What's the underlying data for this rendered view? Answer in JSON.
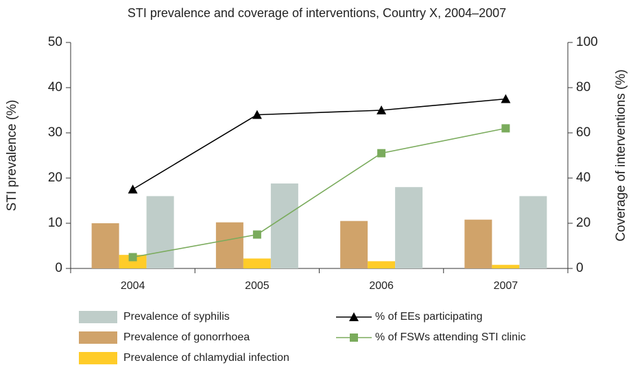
{
  "chart_data": {
    "type": "bar-line",
    "title": "STI prevalence and coverage of interventions, Country X, 2004–2007",
    "ylabel": "STI prevalence (%)",
    "y2label": "Coverage of interventions (%)",
    "categories": [
      "2004",
      "2005",
      "2006",
      "2007"
    ],
    "series": [
      {
        "name": "Prevalence of gonorrhoea",
        "type": "bar",
        "color": "#d0a36a",
        "values": [
          10,
          10.2,
          10.5,
          10.8
        ]
      },
      {
        "name": "Prevalence of chlamydial infection",
        "type": "bar",
        "color": "#ffcc29",
        "values": [
          3,
          2.2,
          1.6,
          0.8
        ]
      },
      {
        "name": "Prevalence of syphilis",
        "type": "bar",
        "color": "#bfcdc9",
        "values": [
          16,
          18.8,
          18,
          16
        ]
      },
      {
        "name": "% of EEs participating",
        "type": "line",
        "axis": "y2",
        "marker": "triangle",
        "color": "#000000",
        "values": [
          35,
          68,
          70,
          75
        ]
      },
      {
        "name": "% of FSWs attending STI clinic",
        "type": "line",
        "axis": "y2",
        "marker": "square",
        "color": "#7aab5c",
        "values": [
          5,
          15,
          51,
          62
        ]
      }
    ],
    "ylim": [
      0,
      50
    ],
    "yticks": [
      0,
      10,
      20,
      30,
      40,
      50
    ],
    "y2lim": [
      0,
      100
    ],
    "y2ticks": [
      0,
      20,
      40,
      60,
      80,
      100
    ]
  }
}
